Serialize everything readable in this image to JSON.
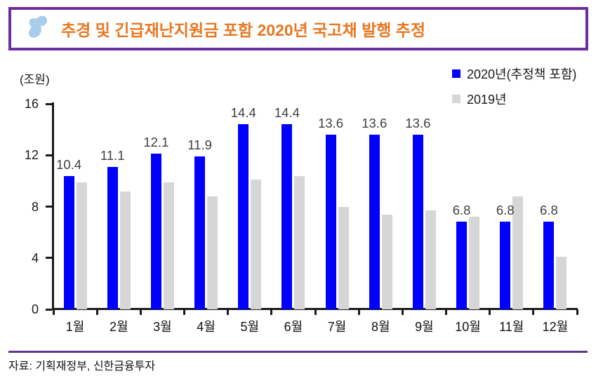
{
  "header": {
    "title": "추경 및 긴급재난지원금 포함 2020년 국고채 발행 추정",
    "icon": "brand-swoosh-icon"
  },
  "chart_data": {
    "type": "bar",
    "title": "추경 및 긴급재난지원금 포함 2020년 국고채 발행 추정",
    "unit_label": "(조원)",
    "categories": [
      "1월",
      "2월",
      "3월",
      "4월",
      "5월",
      "6월",
      "7월",
      "8월",
      "9월",
      "10월",
      "11월",
      "12월"
    ],
    "series": [
      {
        "name": "2020년(추정책 포함)",
        "color": "#0000FE",
        "values": [
          10.4,
          11.1,
          12.1,
          11.9,
          14.4,
          14.4,
          13.6,
          13.6,
          13.6,
          6.8,
          6.8,
          6.8
        ],
        "data_labels": true
      },
      {
        "name": "2019년",
        "color": "#D6D6D6",
        "values": [
          9.9,
          9.2,
          9.9,
          8.8,
          10.1,
          10.4,
          8.0,
          7.4,
          7.7,
          7.2,
          8.8,
          4.1
        ],
        "data_labels": false
      }
    ],
    "ylim": [
      0,
      16
    ],
    "yticks": [
      0,
      4,
      8,
      12,
      16
    ],
    "grid": false,
    "legend_position": "top-right"
  },
  "footer": {
    "source": "자료: 기획재정부, 신한금융투자"
  },
  "colors": {
    "accent_purple": "#6B2E9E",
    "divider_purple": "#5F3790",
    "title_orange": "#E87722",
    "bar_2020_blue": "#0000FE",
    "bar_2019_gray": "#D6D6D6",
    "icon_light_blue": "#A8CDEC",
    "axis_black": "#1A1A1A",
    "data_label_gray": "#3F3F3F"
  }
}
